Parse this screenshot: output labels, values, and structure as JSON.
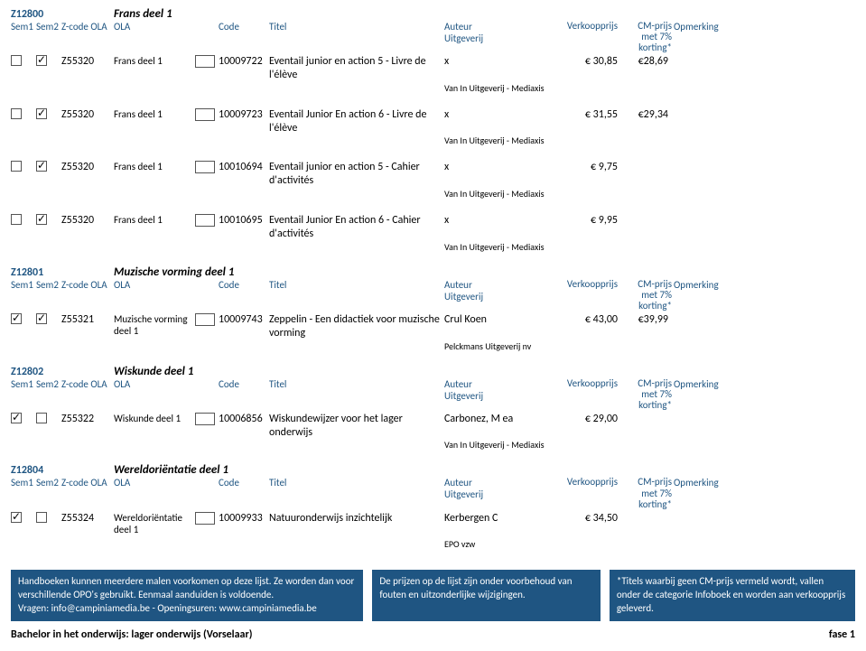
{
  "sections": [
    {
      "code": "Z12800",
      "title": "Frans deel 1",
      "headers": {
        "sem1": "Sem1",
        "sem2": "Sem2",
        "zcodeola": "Z-code OLA",
        "ola": "OLA",
        "code": "Code",
        "titel": "Titel",
        "auteur": "Auteur",
        "uitgeverij": "Uitgeverij",
        "verkoop": "Verkoopprijs",
        "cm1": "CM-prijs",
        "cm2": "met 7%",
        "cm3": "korting*",
        "opm": "Opmerking"
      },
      "rows": [
        {
          "sem1": false,
          "sem2": true,
          "zcode": "Z55320",
          "ola": "Frans deel 1",
          "code": "10009722",
          "titel": "Eventail junior en action 5 - Livre de l'élève",
          "auteur": "x",
          "uitg": "Van In Uitgeverij - Mediaxis",
          "verkoop": "€ 30,85",
          "cm": "€28,69"
        },
        {
          "sem1": false,
          "sem2": true,
          "zcode": "Z55320",
          "ola": "Frans deel 1",
          "code": "10009723",
          "titel": "Eventail Junior En action 6 - Livre de l'élève",
          "auteur": "x",
          "uitg": "Van In Uitgeverij - Mediaxis",
          "verkoop": "€ 31,55",
          "cm": "€29,34"
        },
        {
          "sem1": false,
          "sem2": true,
          "zcode": "Z55320",
          "ola": "Frans deel 1",
          "code": "10010694",
          "titel": "Eventail junior en action 5 - Cahier d'activités",
          "auteur": "x",
          "uitg": "Van In Uitgeverij - Mediaxis",
          "verkoop": "€ 9,75",
          "cm": ""
        },
        {
          "sem1": false,
          "sem2": true,
          "zcode": "Z55320",
          "ola": "Frans deel 1",
          "code": "10010695",
          "titel": "Eventail Junior En action 6 - Cahier d'activités",
          "auteur": "x",
          "uitg": "Van In Uitgeverij - Mediaxis",
          "verkoop": "€ 9,95",
          "cm": ""
        }
      ]
    },
    {
      "code": "Z12801",
      "title": "Muzische vorming deel 1",
      "headers": {
        "sem1": "Sem1",
        "sem2": "Sem2",
        "zcodeola": "Z-code OLA",
        "ola": "OLA",
        "code": "Code",
        "titel": "Titel",
        "auteur": "Auteur",
        "uitgeverij": "Uitgeverij",
        "verkoop": "Verkoopprijs",
        "cm1": "CM-prijs",
        "cm2": "met 7%",
        "cm3": "korting*",
        "opm": "Opmerking"
      },
      "rows": [
        {
          "sem1": true,
          "sem2": true,
          "zcode": "Z55321",
          "ola": "Muzische vorming deel 1",
          "code": "10009743",
          "titel": "Zeppelin - Een didactiek voor muzische vorming",
          "auteur": "Crul Koen",
          "uitg": "Pelckmans Uitgeverij nv",
          "verkoop": "€ 43,00",
          "cm": "€39,99"
        }
      ]
    },
    {
      "code": "Z12802",
      "title": "Wiskunde deel 1",
      "headers": {
        "sem1": "Sem1",
        "sem2": "Sem2",
        "zcodeola": "Z-code OLA",
        "ola": "OLA",
        "code": "Code",
        "titel": "Titel",
        "auteur": "Auteur",
        "uitgeverij": "Uitgeverij",
        "verkoop": "Verkoopprijs",
        "cm1": "CM-prijs",
        "cm2": "met 7%",
        "cm3": "korting*",
        "opm": "Opmerking"
      },
      "rows": [
        {
          "sem1": true,
          "sem2": false,
          "zcode": "Z55322",
          "ola": "Wiskunde deel 1",
          "code": "10006856",
          "titel": "Wiskundewijzer voor het lager onderwijs",
          "auteur": "Carbonez, M ea",
          "uitg": "Van In Uitgeverij - Mediaxis",
          "verkoop": "€ 29,00",
          "cm": ""
        }
      ]
    },
    {
      "code": "Z12804",
      "title": "Wereldoriëntatie deel 1",
      "headers": {
        "sem1": "Sem1",
        "sem2": "Sem2",
        "zcodeola": "Z-code OLA",
        "ola": "OLA",
        "code": "Code",
        "titel": "Titel",
        "auteur": "Auteur",
        "uitgeverij": "Uitgeverij",
        "verkoop": "Verkoopprijs",
        "cm1": "CM-prijs",
        "cm2": "met 7%",
        "cm3": "korting*",
        "opm": "Opmerking"
      },
      "rows": [
        {
          "sem1": true,
          "sem2": false,
          "zcode": "Z55324",
          "ola": "Wereldoriëntatie deel 1",
          "code": "10009933",
          "titel": "Natuuronderwijs inzichtelijk",
          "auteur": "Kerbergen C",
          "uitg": "EPO vzw",
          "verkoop": "€ 34,50",
          "cm": ""
        }
      ]
    }
  ],
  "footer": {
    "box1": "Handboeken kunnen meerdere malen voorkomen op deze lijst. Ze worden dan voor verschillende OPO's gebruikt. Eenmaal aanduiden is voldoende.\nVragen: info@campiniamedia.be - Openingsuren: www.campiniamedia.be",
    "box2": "De prijzen op de lijst zijn onder voorbehoud van fouten en uitzonderlijke wijzigingen.",
    "box3": "*Titels waarbij geen CM-prijs vermeld wordt, vallen onder de categorie Infoboek en worden aan verkoopprijs geleverd.",
    "left": "Bachelor in het onderwijs: lager onderwijs (Vorselaar)",
    "right": "fase 1"
  }
}
